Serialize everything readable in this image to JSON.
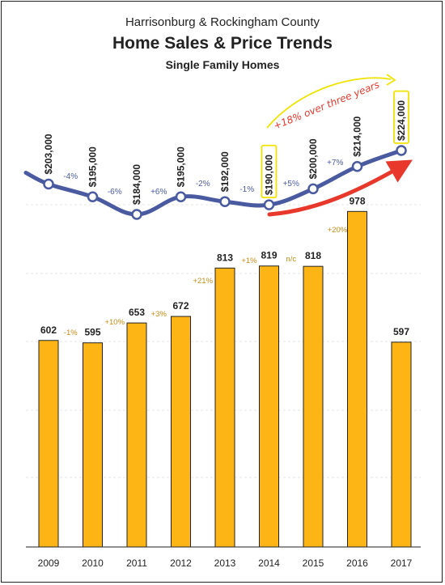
{
  "title": "Harrisonburg & Rockingham County",
  "subtitle": "Home Sales & Price Trends",
  "subsubtitle": "Single Family Homes",
  "chart_data": {
    "type": "bar",
    "categories": [
      "2009",
      "2010",
      "2011",
      "2012",
      "2013",
      "2014",
      "2015",
      "2016",
      "2017"
    ],
    "bar_series": {
      "values": [
        602,
        595,
        653,
        672,
        813,
        819,
        818,
        978,
        597
      ],
      "labels": [
        "602",
        "595",
        "653",
        "672",
        "813",
        "819",
        "818",
        "978",
        "597"
      ],
      "change_labels": [
        "-1%",
        "+10%",
        "+3%",
        "+21%",
        "+1%",
        "n/c",
        "+20%"
      ],
      "color": "#FDB515"
    },
    "line_series": {
      "values": [
        203000,
        195000,
        184000,
        195000,
        192000,
        190000,
        200000,
        214000,
        224000
      ],
      "labels": [
        "$203,000",
        "$195,000",
        "$184,000",
        "$195,000",
        "$192,000",
        "$190,000",
        "$200,000",
        "$214,000",
        "$224,000"
      ],
      "change_labels": [
        "-4%",
        "-6%",
        "+6%",
        "-2%",
        "-1%",
        "+5%",
        "+7%",
        "+5%"
      ],
      "color": "#4A5AA0",
      "highlighted_points": [
        "2014",
        "2017"
      ]
    },
    "annotation": "+18% over three years",
    "grid": true
  }
}
